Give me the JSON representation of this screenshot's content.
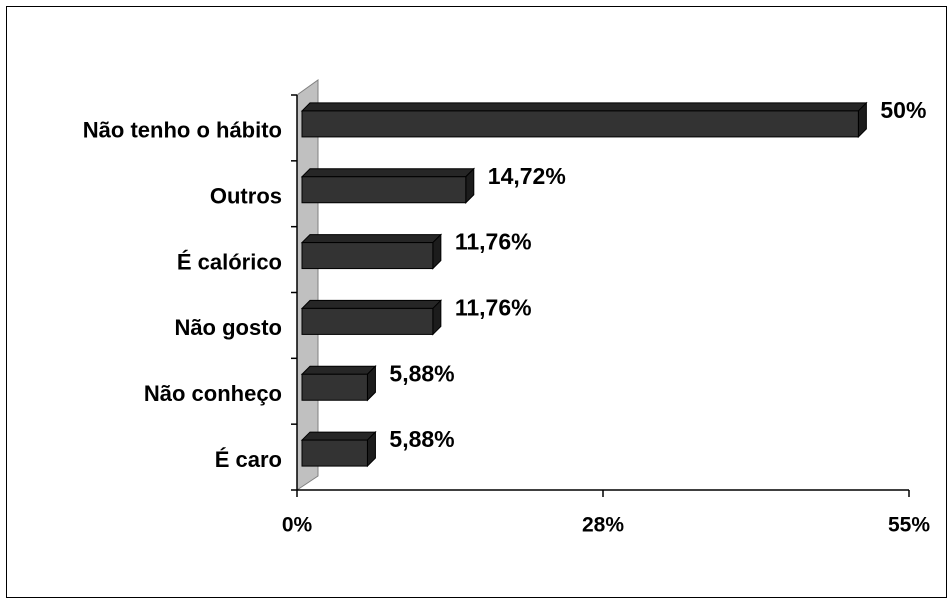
{
  "chart_data": {
    "type": "bar3d_horizontal",
    "categories": [
      "Não tenho o hábito",
      "Outros",
      "É calórico",
      "Não gosto",
      "Não conheço",
      "É caro"
    ],
    "values": [
      50,
      14.72,
      11.76,
      11.76,
      5.88,
      5.88
    ],
    "value_labels": [
      "50%",
      "14,72%",
      "11,76%",
      "11,76%",
      "5,88%",
      "5,88%"
    ],
    "color": "#333333",
    "xlim": [
      0,
      55
    ],
    "xticks": [
      {
        "value": 0,
        "label": "0%"
      },
      {
        "value": 27.5,
        "label": "28%"
      },
      {
        "value": 55,
        "label": "55%"
      }
    ]
  }
}
